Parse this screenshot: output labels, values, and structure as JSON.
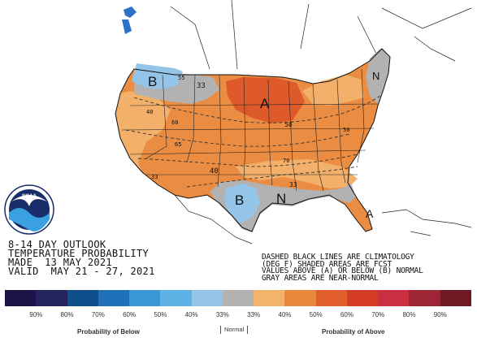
{
  "title": {
    "line1": "8-14 DAY OUTLOOK",
    "line2": "TEMPERATURE PROBABILITY",
    "line3": "MADE  13 MAY 2021",
    "line4": "VALID  MAY 21 - 27, 2021"
  },
  "notes": {
    "line1": "DASHED BLACK LINES ARE CLIMATOLOGY",
    "line2": "(DEG F) SHADED AREAS ARE FCST",
    "line3": "VALUES ABOVE (A) OR BELOW (B) NORMAL",
    "line4": "GRAY AREAS ARE NEAR-NORMAL"
  },
  "logo": {
    "text": "NOAA"
  },
  "map_labels": {
    "region_a_north": "A",
    "region_a_southeast": "A",
    "region_b_northwest": "B",
    "region_b_texas": "B",
    "region_n_gulf": "N",
    "region_n_northeast": "N",
    "contour_33_nw": "33",
    "contour_33_gulf": "33",
    "contour_33_west": "33",
    "contour_40_central": "40",
    "contour_40_west": "40",
    "contour_50_north": "50",
    "contour_50_east": "50",
    "climo_55": "55",
    "climo_60": "60",
    "climo_65": "65",
    "climo_70": "70"
  },
  "legend": {
    "colors": [
      "#1c1446",
      "#25235e",
      "#0d4e8b",
      "#1f6fb9",
      "#3a97d6",
      "#5eb2e6",
      "#94c5e8",
      "#b2b2b2",
      "#f0b46c",
      "#e8883c",
      "#e15d2c",
      "#d43c28",
      "#c92f40",
      "#9e2535",
      "#6e1a22"
    ],
    "labels": [
      "90%",
      "80%",
      "70%",
      "60%",
      "50%",
      "40%",
      "33%",
      "33%",
      "40%",
      "50%",
      "60%",
      "70%",
      "80%",
      "90%"
    ],
    "below_caption": "Probability of Below",
    "normal_caption": "Normal",
    "above_caption": "Probability of Above"
  }
}
